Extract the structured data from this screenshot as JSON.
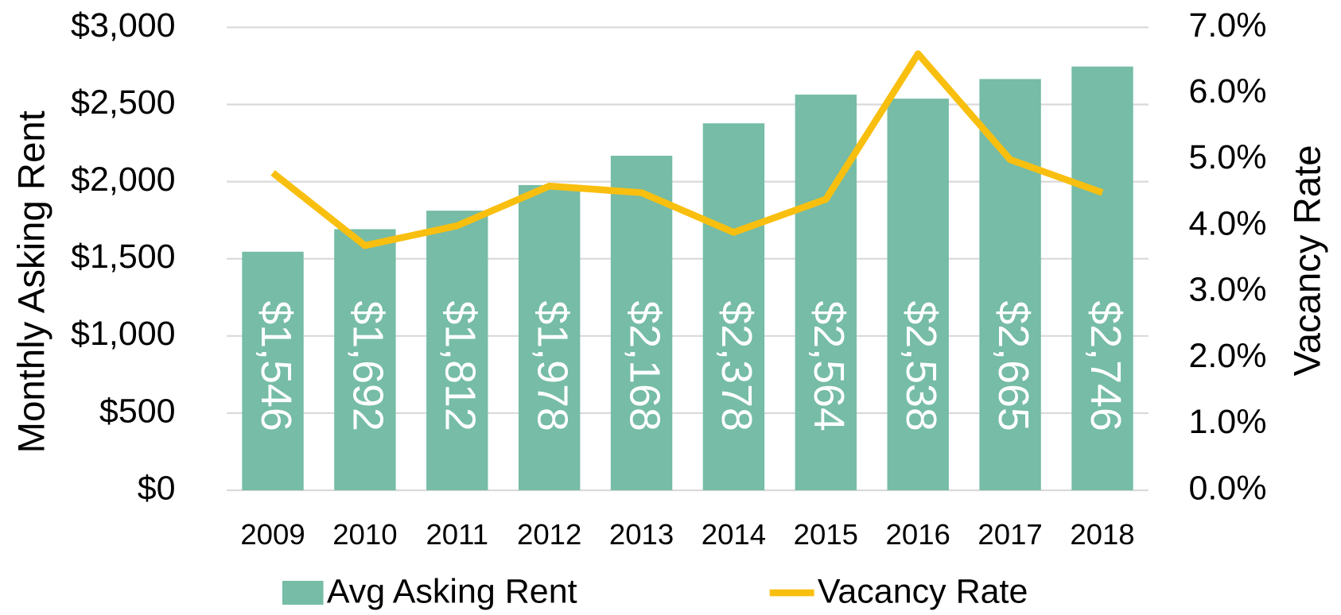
{
  "chart_data": {
    "type": "bar_line",
    "y_axis_label": "Monthly Asking Rent",
    "y2_axis_label": "Vacancy Rate",
    "categories": [
      "2009",
      "2010",
      "2011",
      "2012",
      "2013",
      "2014",
      "2015",
      "2016",
      "2017",
      "2018"
    ],
    "series": [
      {
        "name": "Avg Asking Rent",
        "type": "bar",
        "color": "#76bca6",
        "values": [
          1546,
          1692,
          1812,
          1978,
          2168,
          2378,
          2564,
          2538,
          2665,
          2746
        ],
        "value_labels": [
          "$1,546",
          "$1,692",
          "$1,812",
          "$1,978",
          "$2,168",
          "$2,378",
          "$2,564",
          "$2,538",
          "$2,665",
          "$2,746"
        ]
      },
      {
        "name": "Vacancy Rate",
        "type": "line",
        "color": "#f9bf0f",
        "axis": "y2",
        "values": [
          4.8,
          3.7,
          4.0,
          4.6,
          4.5,
          3.9,
          4.4,
          6.6,
          5.0,
          4.5
        ]
      }
    ],
    "ylim": [
      0,
      3000
    ],
    "yticks": [
      {
        "value": 0,
        "label": "$0"
      },
      {
        "value": 500,
        "label": "$500"
      },
      {
        "value": 1000,
        "label": "$1,000"
      },
      {
        "value": 1500,
        "label": "$1,500"
      },
      {
        "value": 2000,
        "label": "$2,000"
      },
      {
        "value": 2500,
        "label": "$2,500"
      },
      {
        "value": 3000,
        "label": "$3,000"
      }
    ],
    "y2lim": [
      0,
      7
    ],
    "y2ticks": [
      {
        "value": 0,
        "label": "0.0%"
      },
      {
        "value": 1,
        "label": "1.0%"
      },
      {
        "value": 2,
        "label": "2.0%"
      },
      {
        "value": 3,
        "label": "3.0%"
      },
      {
        "value": 4,
        "label": "4.0%"
      },
      {
        "value": 5,
        "label": "5.0%"
      },
      {
        "value": 6,
        "label": "6.0%"
      },
      {
        "value": 7,
        "label": "7.0%"
      }
    ],
    "grid": true,
    "legend": "bottom"
  }
}
